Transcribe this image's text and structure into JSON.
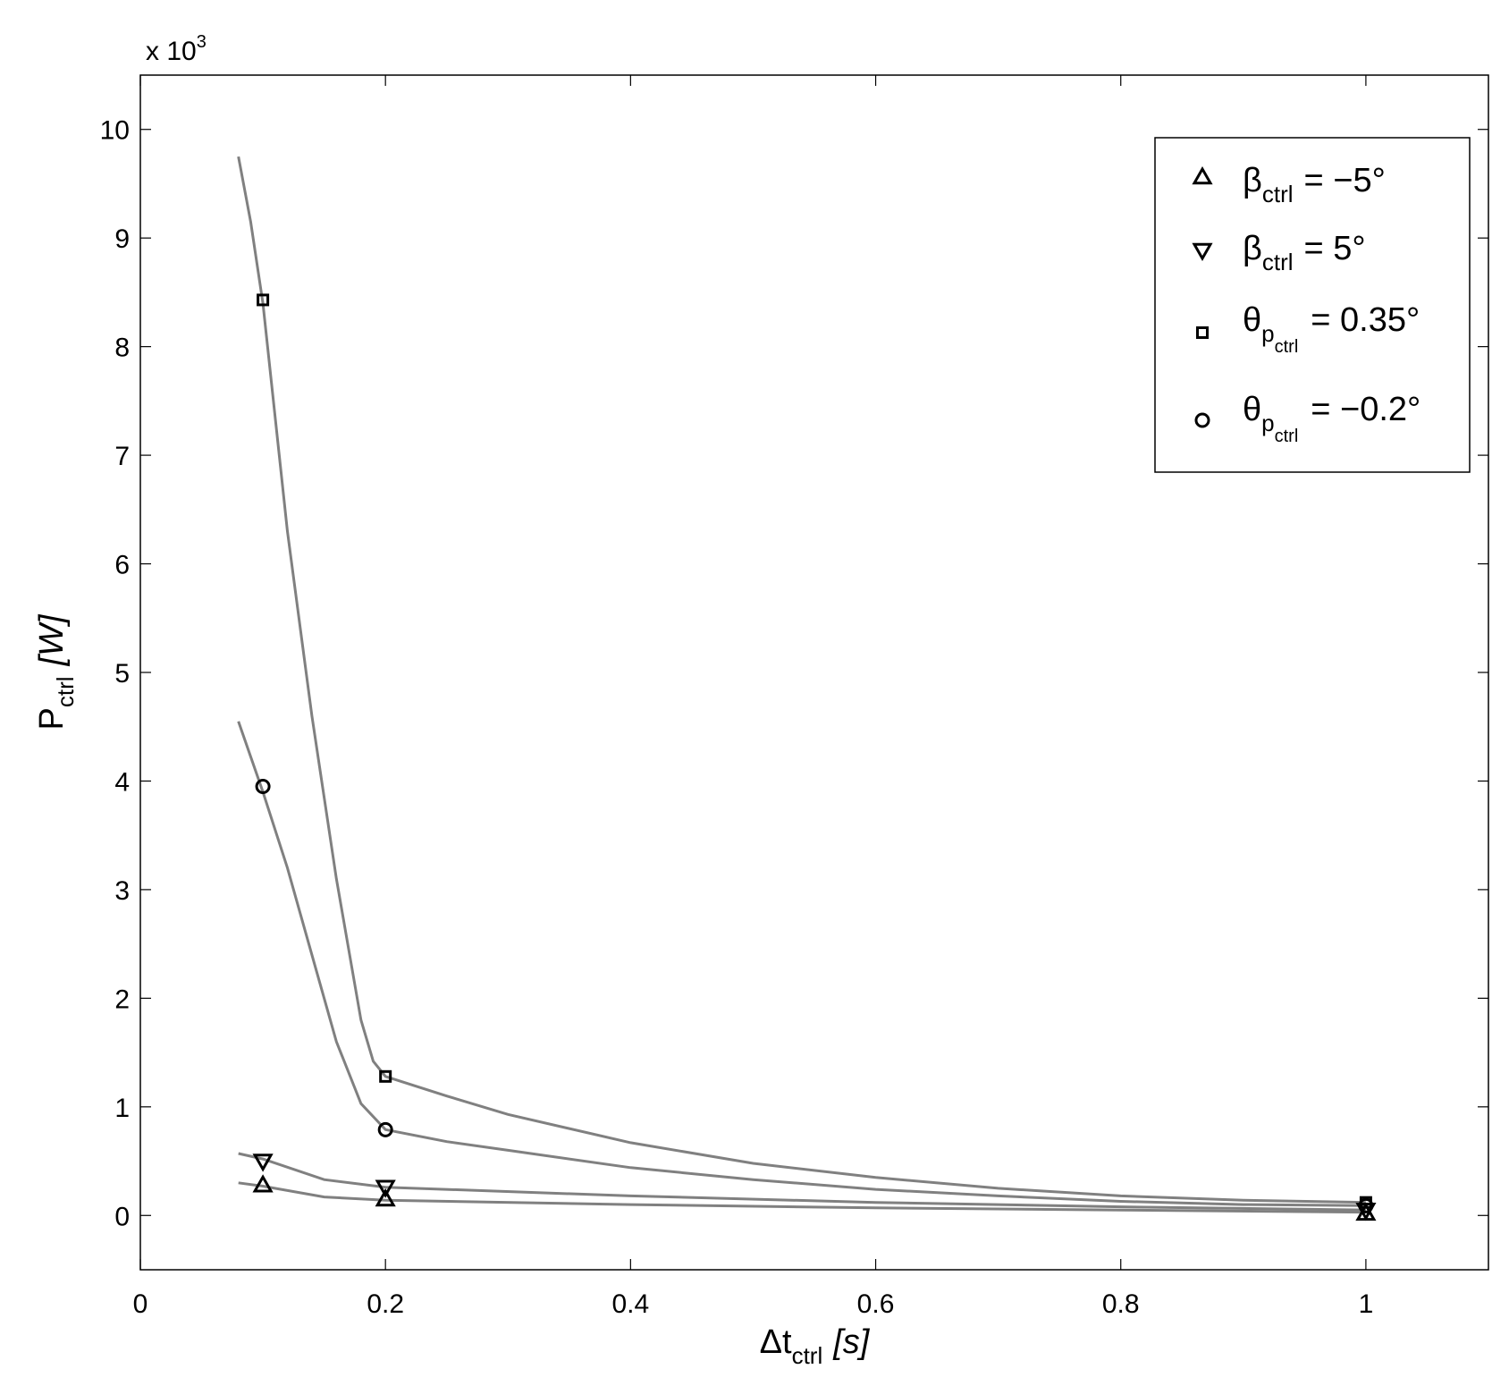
{
  "chart_data": {
    "type": "scatter",
    "x_tick_labels": [
      "0",
      "0.2",
      "0.4",
      "0.6",
      "0.8",
      "1"
    ],
    "y_tick_labels": [
      "0",
      "1",
      "2",
      "3",
      "4",
      "5",
      "6",
      "7",
      "8",
      "9",
      "10"
    ],
    "x_ticks": [
      0,
      0.2,
      0.4,
      0.6,
      0.8,
      1
    ],
    "y_ticks": [
      0,
      1,
      2,
      3,
      4,
      5,
      6,
      7,
      8,
      9,
      10
    ],
    "xlim": [
      0,
      1.1
    ],
    "ylim": [
      -0.5,
      10.5
    ],
    "y_multiplier": {
      "base": "x 10",
      "exponent": "3"
    },
    "xlabel": {
      "main": "Δt",
      "sub": "ctrl",
      "unit": "[s]"
    },
    "ylabel": {
      "main": "P",
      "sub": "ctrl",
      "unit": "[W]"
    },
    "legend_position": "top-right",
    "grid": false,
    "curve_color": "#808080",
    "marker_color": "#000000",
    "series": [
      {
        "legend": {
          "symbol": "β",
          "sub": "ctrl",
          "text": "= −5°"
        },
        "marker": "triangle-up",
        "x": [
          0.1,
          0.2,
          1.0
        ],
        "y": [
          0.28,
          0.15,
          0.02
        ],
        "curve": [
          [
            0.08,
            0.3
          ],
          [
            0.1,
            0.27
          ],
          [
            0.15,
            0.17
          ],
          [
            0.2,
            0.14
          ],
          [
            0.4,
            0.1
          ],
          [
            0.6,
            0.07
          ],
          [
            0.8,
            0.05
          ],
          [
            1.0,
            0.03
          ]
        ]
      },
      {
        "legend": {
          "symbol": "β",
          "sub": "ctrl",
          "text": "=  5°"
        },
        "marker": "triangle-down",
        "x": [
          0.1,
          0.2,
          1.0
        ],
        "y": [
          0.5,
          0.26,
          0.05
        ],
        "curve": [
          [
            0.08,
            0.57
          ],
          [
            0.1,
            0.52
          ],
          [
            0.15,
            0.33
          ],
          [
            0.2,
            0.26
          ],
          [
            0.4,
            0.18
          ],
          [
            0.6,
            0.12
          ],
          [
            0.8,
            0.08
          ],
          [
            1.0,
            0.05
          ]
        ]
      },
      {
        "legend": {
          "symbol": "θ",
          "sub": "p",
          "subsub": "ctrl",
          "text": "= 0.35°"
        },
        "marker": "square",
        "x": [
          0.1,
          0.2,
          1.0
        ],
        "y": [
          8.43,
          1.28,
          0.12
        ],
        "curve": [
          [
            0.08,
            9.75
          ],
          [
            0.09,
            9.15
          ],
          [
            0.1,
            8.4
          ],
          [
            0.12,
            6.3
          ],
          [
            0.14,
            4.6
          ],
          [
            0.16,
            3.1
          ],
          [
            0.18,
            1.8
          ],
          [
            0.19,
            1.42
          ],
          [
            0.2,
            1.28
          ],
          [
            0.25,
            1.1
          ],
          [
            0.3,
            0.93
          ],
          [
            0.4,
            0.67
          ],
          [
            0.5,
            0.48
          ],
          [
            0.6,
            0.35
          ],
          [
            0.7,
            0.25
          ],
          [
            0.8,
            0.18
          ],
          [
            0.9,
            0.14
          ],
          [
            1.0,
            0.12
          ]
        ]
      },
      {
        "legend": {
          "symbol": "θ",
          "sub": "p",
          "subsub": "ctrl",
          "text": "= −0.2°"
        },
        "marker": "circle",
        "x": [
          0.1,
          0.2,
          1.0
        ],
        "y": [
          3.95,
          0.79,
          0.09
        ],
        "curve": [
          [
            0.08,
            4.55
          ],
          [
            0.1,
            3.9
          ],
          [
            0.12,
            3.2
          ],
          [
            0.14,
            2.4
          ],
          [
            0.16,
            1.6
          ],
          [
            0.18,
            1.03
          ],
          [
            0.2,
            0.79
          ],
          [
            0.25,
            0.68
          ],
          [
            0.3,
            0.6
          ],
          [
            0.4,
            0.44
          ],
          [
            0.5,
            0.33
          ],
          [
            0.6,
            0.24
          ],
          [
            0.7,
            0.18
          ],
          [
            0.8,
            0.13
          ],
          [
            0.9,
            0.1
          ],
          [
            1.0,
            0.09
          ]
        ]
      }
    ]
  }
}
